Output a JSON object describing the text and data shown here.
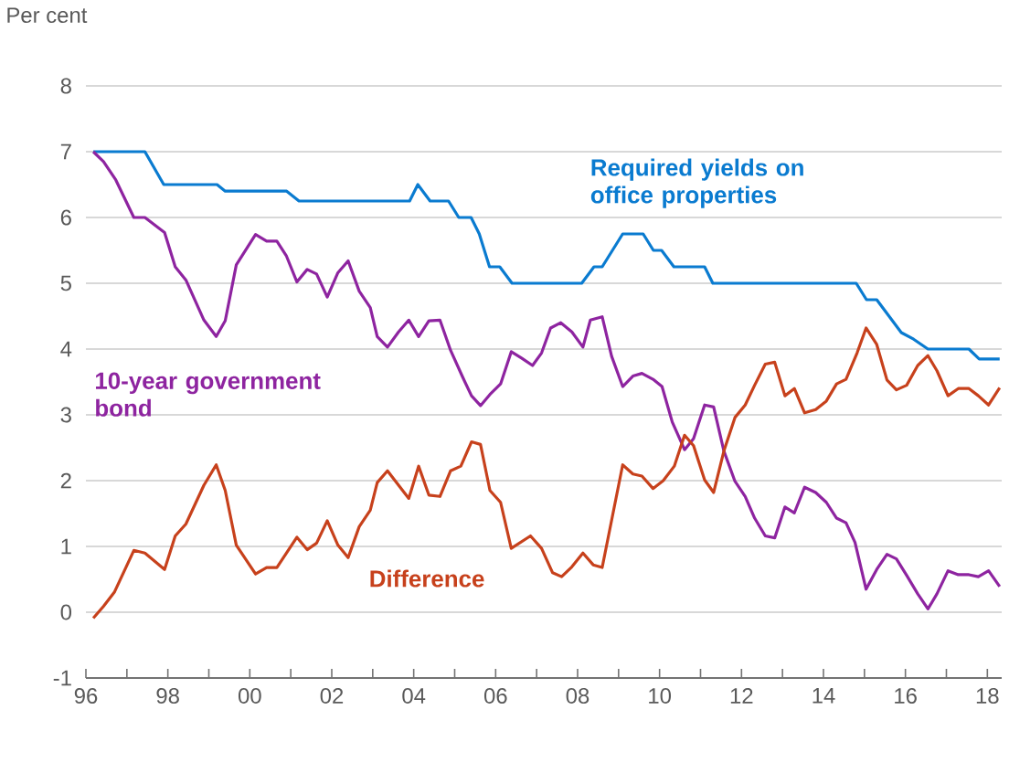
{
  "chart_data": {
    "type": "line",
    "ylabel": "Per cent",
    "xlim": [
      1996,
      2018.35
    ],
    "ylim": [
      -1,
      8
    ],
    "yticks": [
      -1,
      0,
      1,
      2,
      3,
      4,
      5,
      6,
      7,
      8
    ],
    "xticks": [
      {
        "value": 1996,
        "label": "96"
      },
      {
        "value": 1997,
        "label": null
      },
      {
        "value": 1998,
        "label": "98"
      },
      {
        "value": 1999,
        "label": null
      },
      {
        "value": 2000,
        "label": "00"
      },
      {
        "value": 2001,
        "label": null
      },
      {
        "value": 2002,
        "label": "02"
      },
      {
        "value": 2003,
        "label": null
      },
      {
        "value": 2004,
        "label": "04"
      },
      {
        "value": 2005,
        "label": null
      },
      {
        "value": 2006,
        "label": "06"
      },
      {
        "value": 2007,
        "label": null
      },
      {
        "value": 2008,
        "label": "08"
      },
      {
        "value": 2009,
        "label": null
      },
      {
        "value": 2010,
        "label": "10"
      },
      {
        "value": 2011,
        "label": null
      },
      {
        "value": 2012,
        "label": "12"
      },
      {
        "value": 2013,
        "label": null
      },
      {
        "value": 2014,
        "label": "14"
      },
      {
        "value": 2015,
        "label": null
      },
      {
        "value": 2016,
        "label": "16"
      },
      {
        "value": 2017,
        "label": null
      },
      {
        "value": 2018,
        "label": "18"
      }
    ],
    "grid": "y",
    "marker": "none",
    "line_style": "solid",
    "series": [
      {
        "name": "Required yields on office properties",
        "color": "#0a7bd0",
        "x": [
          1996.18,
          1997.44,
          1997.9,
          1999.2,
          1999.4,
          2000.9,
          2001.2,
          2003.9,
          2004.1,
          2004.4,
          2004.85,
          2005.1,
          2005.4,
          2005.6,
          2005.85,
          2006.1,
          2006.4,
          2008.1,
          2008.4,
          2008.6,
          2009.1,
          2009.6,
          2009.85,
          2010.05,
          2010.35,
          2011.1,
          2011.3,
          2014.8,
          2015.05,
          2015.3,
          2015.9,
          2016.2,
          2016.55,
          2017.55,
          2017.8,
          2018.3
        ],
        "values": [
          7.0,
          7.0,
          6.5,
          6.5,
          6.4,
          6.4,
          6.25,
          6.25,
          6.5,
          6.25,
          6.25,
          6.0,
          6.0,
          5.75,
          5.25,
          5.25,
          5.0,
          5.0,
          5.25,
          5.25,
          5.75,
          5.75,
          5.5,
          5.5,
          5.25,
          5.25,
          5.0,
          5.0,
          4.75,
          4.75,
          4.25,
          4.15,
          4.0,
          4.0,
          3.85,
          3.85
        ]
      },
      {
        "name": "10-year government bond",
        "color": "#8e24a0",
        "x": [
          1996.18,
          1996.43,
          1996.73,
          1997.17,
          1997.44,
          1997.92,
          1998.18,
          1998.44,
          1998.88,
          1999.18,
          1999.4,
          1999.67,
          2000.14,
          2000.41,
          2000.66,
          2000.89,
          2001.15,
          2001.4,
          2001.63,
          2001.89,
          2002.15,
          2002.4,
          2002.67,
          2002.94,
          2003.11,
          2003.36,
          2003.63,
          2003.88,
          2004.12,
          2004.37,
          2004.64,
          2004.9,
          2005.19,
          2005.41,
          2005.63,
          2005.86,
          2006.12,
          2006.38,
          2006.64,
          2006.9,
          2007.12,
          2007.34,
          2007.59,
          2007.86,
          2008.13,
          2008.31,
          2008.6,
          2008.83,
          2009.1,
          2009.35,
          2009.57,
          2009.84,
          2010.06,
          2010.31,
          2010.61,
          2010.83,
          2011.1,
          2011.32,
          2011.57,
          2011.84,
          2012.09,
          2012.32,
          2012.58,
          2012.81,
          2013.06,
          2013.29,
          2013.54,
          2013.81,
          2014.07,
          2014.32,
          2014.55,
          2014.77,
          2015.04,
          2015.3,
          2015.55,
          2015.78,
          2016.03,
          2016.3,
          2016.55,
          2016.77,
          2017.04,
          2017.29,
          2017.55,
          2017.78,
          2018.03,
          2018.3
        ],
        "values": [
          7.0,
          6.85,
          6.57,
          6.0,
          6.0,
          5.77,
          5.25,
          5.05,
          4.44,
          4.19,
          4.43,
          5.28,
          5.74,
          5.64,
          5.64,
          5.42,
          5.02,
          5.21,
          5.14,
          4.79,
          5.16,
          5.34,
          4.88,
          4.63,
          4.19,
          4.03,
          4.26,
          4.44,
          4.19,
          4.43,
          4.44,
          3.98,
          3.58,
          3.29,
          3.14,
          3.31,
          3.47,
          3.96,
          3.86,
          3.75,
          3.94,
          4.32,
          4.4,
          4.26,
          4.03,
          4.44,
          4.49,
          3.89,
          3.43,
          3.59,
          3.63,
          3.54,
          3.43,
          2.89,
          2.47,
          2.64,
          3.15,
          3.12,
          2.45,
          1.99,
          1.76,
          1.43,
          1.16,
          1.13,
          1.6,
          1.51,
          1.9,
          1.82,
          1.67,
          1.43,
          1.36,
          1.06,
          0.35,
          0.65,
          0.88,
          0.81,
          0.56,
          0.28,
          0.05,
          0.28,
          0.63,
          0.57,
          0.57,
          0.54,
          0.63,
          0.39
        ]
      },
      {
        "name": "Difference",
        "color": "#c7411c",
        "x": [
          1996.18,
          1996.43,
          1996.7,
          1997.17,
          1997.44,
          1997.92,
          1998.18,
          1998.44,
          1998.88,
          1999.18,
          1999.4,
          1999.67,
          2000.14,
          2000.41,
          2000.66,
          2001.15,
          2001.4,
          2001.63,
          2001.89,
          2002.15,
          2002.4,
          2002.67,
          2002.94,
          2003.11,
          2003.36,
          2003.63,
          2003.88,
          2004.12,
          2004.37,
          2004.64,
          2004.9,
          2005.15,
          2005.41,
          2005.63,
          2005.86,
          2006.12,
          2006.38,
          2006.85,
          2007.12,
          2007.39,
          2007.61,
          2007.86,
          2008.13,
          2008.38,
          2008.6,
          2009.1,
          2009.35,
          2009.57,
          2009.84,
          2010.09,
          2010.36,
          2010.61,
          2010.83,
          2011.1,
          2011.32,
          2011.57,
          2011.84,
          2012.09,
          2012.32,
          2012.58,
          2012.81,
          2013.06,
          2013.29,
          2013.54,
          2013.81,
          2014.07,
          2014.32,
          2014.55,
          2014.82,
          2015.04,
          2015.3,
          2015.55,
          2015.78,
          2016.03,
          2016.3,
          2016.55,
          2016.77,
          2017.04,
          2017.29,
          2017.55,
          2017.78,
          2018.03,
          2018.3
        ],
        "values": [
          -0.09,
          0.09,
          0.31,
          0.94,
          0.9,
          0.65,
          1.16,
          1.34,
          1.93,
          2.24,
          1.85,
          1.02,
          0.58,
          0.68,
          0.68,
          1.14,
          0.95,
          1.05,
          1.39,
          1.02,
          0.83,
          1.3,
          1.55,
          1.97,
          2.15,
          1.93,
          1.73,
          2.22,
          1.78,
          1.76,
          2.15,
          2.22,
          2.59,
          2.55,
          1.85,
          1.67,
          0.97,
          1.16,
          0.97,
          0.6,
          0.54,
          0.69,
          0.9,
          0.72,
          0.68,
          2.24,
          2.1,
          2.07,
          1.88,
          2.0,
          2.22,
          2.69,
          2.53,
          2.01,
          1.82,
          2.45,
          2.96,
          3.15,
          3.45,
          3.77,
          3.8,
          3.29,
          3.4,
          3.03,
          3.08,
          3.21,
          3.47,
          3.54,
          3.94,
          4.32,
          4.07,
          3.53,
          3.38,
          3.45,
          3.75,
          3.9,
          3.67,
          3.29,
          3.4,
          3.4,
          3.29,
          3.15,
          3.41
        ]
      }
    ]
  }
}
